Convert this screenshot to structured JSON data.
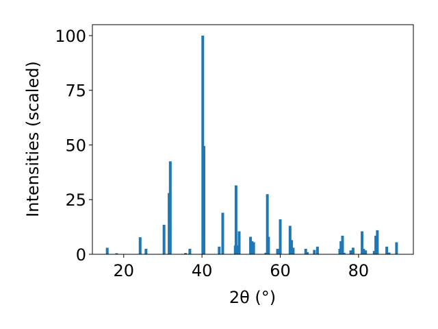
{
  "chart_data": {
    "type": "bar",
    "xlabel": "2θ (°)",
    "ylabel": "Intensities (scaled)",
    "xlim": [
      12,
      94
    ],
    "ylim": [
      0,
      105
    ],
    "xticks": [
      20,
      40,
      60,
      80
    ],
    "yticks": [
      0,
      25,
      50,
      75,
      100
    ],
    "grid": false,
    "bar_color": "#1f77b4",
    "x": [
      15.8,
      18.2,
      24.2,
      25.7,
      30.3,
      31.6,
      31.9,
      35.8,
      36.9,
      40.2,
      40.5,
      44.4,
      45.3,
      48.5,
      48.7,
      49.2,
      49.5,
      52.4,
      52.8,
      53.2,
      56.3,
      56.7,
      57.0,
      59.3,
      60.0,
      62.5,
      62.9,
      63.3,
      66.5,
      66.9,
      68.7,
      69.5,
      75.2,
      75.5,
      75.9,
      76.3,
      78.0,
      78.6,
      80.9,
      81.3,
      81.8,
      84.0,
      84.4,
      84.8,
      87.2,
      87.8,
      89.7
    ],
    "values": [
      3,
      0.5,
      7.8,
      2.5,
      13.5,
      28,
      42.5,
      0.6,
      2.5,
      100,
      49.5,
      3.5,
      19,
      4,
      31.5,
      4,
      10.5,
      8,
      6,
      5.5,
      0.7,
      27.5,
      8,
      2.5,
      16,
      13,
      6.5,
      3,
      2.5,
      1,
      2,
      3.5,
      2.5,
      6,
      8.5,
      0.7,
      1.8,
      3,
      10.5,
      2.5,
      1.8,
      1.5,
      8.5,
      11,
      3.5,
      0.8,
      5.5
    ]
  }
}
